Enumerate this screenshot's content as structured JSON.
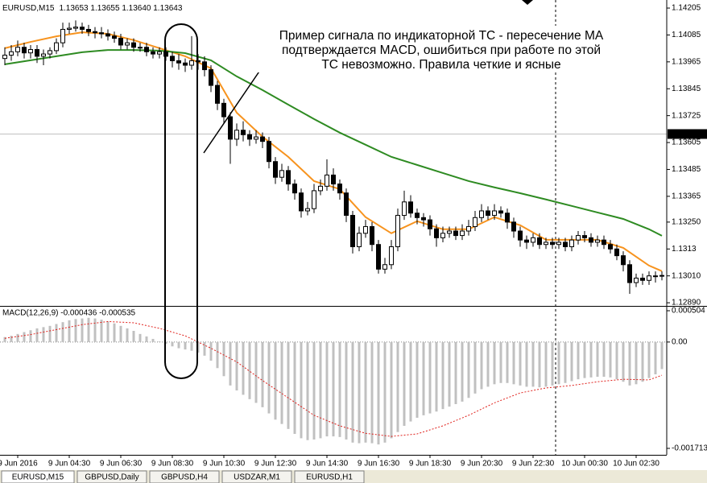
{
  "chart_data": [
    {
      "type": "candlestick",
      "title": "EURUSD,M15",
      "subtitle": "1.13653 1.13655 1.13640 1.13643",
      "annotation": [
        "Пример сигнала по индикаторной ТС - пересечение МА",
        "подтверждается MACD, ошибиться при работе по этой",
        "ТС невозможно. Правила четкие и ясные"
      ],
      "x": [
        1,
        2,
        3,
        4,
        5,
        6,
        7,
        8,
        9,
        10,
        11,
        12,
        13,
        14,
        15,
        16,
        17,
        18,
        19,
        20,
        21,
        22,
        23,
        24,
        25,
        26,
        27,
        28,
        29,
        30,
        31,
        32,
        33,
        34,
        35,
        36,
        37,
        38,
        39,
        40,
        41,
        42,
        43,
        44,
        45,
        46,
        47,
        48,
        49,
        50,
        51,
        52,
        53,
        54,
        55,
        56,
        57,
        58,
        59,
        60,
        61,
        62,
        63,
        64,
        65,
        66,
        67,
        68,
        69,
        70,
        71,
        72,
        73,
        74,
        75,
        76,
        77,
        78,
        79,
        80,
        81,
        82,
        83,
        84,
        85,
        86,
        87,
        88,
        89,
        90,
        91,
        92,
        93,
        94,
        95,
        96,
        97,
        98,
        99,
        100,
        101,
        102,
        103
      ],
      "open": [
        1.1398,
        1.13995,
        1.1401,
        1.1403,
        1.14005,
        1.1402,
        1.1399,
        1.14,
        1.14015,
        1.1405,
        1.1411,
        1.14115,
        1.1412,
        1.1411,
        1.141,
        1.14095,
        1.1409,
        1.1408,
        1.1407,
        1.1404,
        1.1405,
        1.1403,
        1.1403,
        1.1401,
        1.14,
        1.1401,
        1.1399,
        1.1397,
        1.1396,
        1.1395,
        1.1397,
        1.13965,
        1.1393,
        1.1386,
        1.1378,
        1.1372,
        1.1362,
        1.1366,
        1.1364,
        1.1362,
        1.1363,
        1.1361,
        1.1352,
        1.1345,
        1.1348,
        1.1342,
        1.1338,
        1.133,
        1.1331,
        1.1339,
        1.1341,
        1.1346,
        1.1342,
        1.1338,
        1.1328,
        1.1314,
        1.132,
        1.1323,
        1.1315,
        1.1304,
        1.1306,
        1.1314,
        1.1328,
        1.1334,
        1.1329,
        1.1327,
        1.1326,
        1.1322,
        1.1318,
        1.132,
        1.1321,
        1.1319,
        1.1321,
        1.1323,
        1.1327,
        1.133,
        1.1328,
        1.133,
        1.1329,
        1.1325,
        1.1321,
        1.1317,
        1.1316,
        1.1318,
        1.1315,
        1.1316,
        1.1315,
        1.1316,
        1.1314,
        1.1317,
        1.1319,
        1.1318,
        1.1316,
        1.1317,
        1.1315,
        1.1313,
        1.131,
        1.1306,
        1.1298,
        1.13,
        1.1299,
        1.1301,
        1.1301
      ],
      "high": [
        1.1403,
        1.1404,
        1.1406,
        1.1405,
        1.1404,
        1.1404,
        1.1402,
        1.1403,
        1.1407,
        1.1414,
        1.1414,
        1.1415,
        1.1414,
        1.1413,
        1.1412,
        1.1412,
        1.1411,
        1.141,
        1.1409,
        1.1407,
        1.1407,
        1.1405,
        1.1405,
        1.1403,
        1.1403,
        1.1403,
        1.1401,
        1.14,
        1.1398,
        1.1408,
        1.14,
        1.1399,
        1.1395,
        1.1388,
        1.138,
        1.1374,
        1.1369,
        1.137,
        1.1366,
        1.1366,
        1.1365,
        1.1363,
        1.1354,
        1.1351,
        1.135,
        1.1344,
        1.134,
        1.1334,
        1.1342,
        1.1344,
        1.1353,
        1.1349,
        1.1344,
        1.134,
        1.133,
        1.1323,
        1.1326,
        1.1325,
        1.1317,
        1.1309,
        1.1317,
        1.1331,
        1.1339,
        1.1337,
        1.1331,
        1.1329,
        1.1328,
        1.1324,
        1.1323,
        1.1323,
        1.1323,
        1.1324,
        1.1326,
        1.133,
        1.1333,
        1.1332,
        1.1333,
        1.1332,
        1.1331,
        1.1327,
        1.1323,
        1.1319,
        1.132,
        1.132,
        1.1318,
        1.1318,
        1.1318,
        1.1318,
        1.1319,
        1.1321,
        1.1321,
        1.132,
        1.1319,
        1.1319,
        1.1317,
        1.1315,
        1.1312,
        1.1308,
        1.1302,
        1.1302,
        1.1303,
        1.1303,
        1.1303
      ],
      "low": [
        1.1395,
        1.1397,
        1.1399,
        1.1398,
        1.1398,
        1.1396,
        1.1395,
        1.1398,
        1.14,
        1.1403,
        1.1409,
        1.141,
        1.1409,
        1.1408,
        1.1407,
        1.1407,
        1.1406,
        1.1405,
        1.1402,
        1.1402,
        1.1401,
        1.1401,
        1.1399,
        1.1398,
        1.1398,
        1.1397,
        1.1394,
        1.1393,
        1.1392,
        1.1393,
        1.1393,
        1.139,
        1.1383,
        1.1375,
        1.1369,
        1.1351,
        1.1359,
        1.1361,
        1.1359,
        1.136,
        1.1358,
        1.1349,
        1.1342,
        1.1343,
        1.1339,
        1.1335,
        1.1327,
        1.1328,
        1.1329,
        1.1337,
        1.1339,
        1.1339,
        1.1335,
        1.1325,
        1.1311,
        1.1312,
        1.1318,
        1.1312,
        1.1302,
        1.1302,
        1.1304,
        1.1312,
        1.1326,
        1.1327,
        1.1324,
        1.1323,
        1.1319,
        1.1314,
        1.1316,
        1.1318,
        1.1317,
        1.1317,
        1.1319,
        1.1321,
        1.1325,
        1.1326,
        1.1326,
        1.1327,
        1.1322,
        1.1318,
        1.1314,
        1.1313,
        1.1314,
        1.1313,
        1.1313,
        1.1313,
        1.1313,
        1.1312,
        1.1312,
        1.1315,
        1.1316,
        1.1314,
        1.1314,
        1.1313,
        1.1311,
        1.1308,
        1.1303,
        1.1293,
        1.1296,
        1.1297,
        1.1297,
        1.1298,
        1.1299
      ],
      "close": [
        1.13995,
        1.1401,
        1.1403,
        1.14005,
        1.1402,
        1.1399,
        1.14,
        1.14015,
        1.1405,
        1.1411,
        1.14115,
        1.1412,
        1.1411,
        1.141,
        1.14095,
        1.1409,
        1.1408,
        1.1407,
        1.1404,
        1.1405,
        1.1403,
        1.1403,
        1.1401,
        1.14,
        1.1401,
        1.1399,
        1.1397,
        1.1396,
        1.1395,
        1.1397,
        1.13965,
        1.1393,
        1.1386,
        1.1378,
        1.1372,
        1.1362,
        1.1366,
        1.1364,
        1.1362,
        1.1363,
        1.1361,
        1.1352,
        1.1345,
        1.1348,
        1.1342,
        1.1338,
        1.133,
        1.1331,
        1.1339,
        1.1341,
        1.1346,
        1.1342,
        1.1338,
        1.1328,
        1.1314,
        1.132,
        1.1323,
        1.1315,
        1.1304,
        1.1306,
        1.1314,
        1.1328,
        1.1334,
        1.1329,
        1.1327,
        1.1326,
        1.1322,
        1.1318,
        1.132,
        1.1321,
        1.1319,
        1.1321,
        1.1323,
        1.1327,
        1.133,
        1.1328,
        1.133,
        1.1329,
        1.1325,
        1.1321,
        1.1317,
        1.1316,
        1.1318,
        1.1315,
        1.1316,
        1.1315,
        1.1316,
        1.1314,
        1.1317,
        1.1319,
        1.1318,
        1.1316,
        1.1317,
        1.1315,
        1.1313,
        1.131,
        1.1306,
        1.1298,
        1.13,
        1.1299,
        1.1301,
        1.1301,
        1.13012
      ],
      "bull_color": "#ffffff",
      "bear_color": "#000000",
      "series": [
        {
          "color": "#f7931e",
          "x": [
            1,
            5,
            9,
            13,
            17,
            21,
            25,
            29,
            33,
            37,
            41,
            45,
            49,
            53,
            57,
            61,
            65,
            69,
            73,
            77,
            81,
            85,
            89,
            93,
            97,
            101,
            103
          ],
          "values": [
            1.14026,
            1.14054,
            1.14079,
            1.14097,
            1.1409,
            1.14062,
            1.14026,
            1.1399,
            1.13936,
            1.13738,
            1.13631,
            1.13541,
            1.13433,
            1.13397,
            1.13272,
            1.132,
            1.13254,
            1.13218,
            1.13218,
            1.13272,
            1.13236,
            1.13171,
            1.13171,
            1.13171,
            1.13135,
            1.13056,
            1.13031
          ]
        },
        {
          "color": "#2e8b22",
          "x": [
            1,
            5,
            9,
            13,
            17,
            21,
            25,
            29,
            33,
            37,
            41,
            45,
            49,
            53,
            57,
            61,
            65,
            69,
            73,
            77,
            81,
            85,
            89,
            93,
            97,
            101,
            103
          ],
          "values": [
            1.13954,
            1.13972,
            1.1399,
            1.14008,
            1.14018,
            1.14018,
            1.14015,
            1.14004,
            1.13972,
            1.139,
            1.13839,
            1.13774,
            1.1371,
            1.13649,
            1.13595,
            1.13541,
            1.13505,
            1.13469,
            1.13433,
            1.13405,
            1.13379,
            1.13351,
            1.13322,
            1.13293,
            1.13264,
            1.13218,
            1.13189
          ]
        }
      ],
      "price_line": 1.13643,
      "xlim": [
        0.25,
        103.75
      ],
      "xticks": [
        {
          "value": 3,
          "label": "9 Jun 2016"
        },
        {
          "value": 11,
          "label": "9 Jun 04:30"
        },
        {
          "value": 19,
          "label": "9 Jun 06:30"
        },
        {
          "value": 27,
          "label": "9 Jun 08:30"
        },
        {
          "value": 35,
          "label": "9 Jun 10:30"
        },
        {
          "value": 43,
          "label": "9 Jun 12:30"
        },
        {
          "value": 51,
          "label": "9 Jun 14:30"
        },
        {
          "value": 59,
          "label": "9 Jun 16:30"
        },
        {
          "value": 67,
          "label": "9 Jun 18:30"
        },
        {
          "value": 75,
          "label": "9 Jun 20:30"
        },
        {
          "value": 83,
          "label": "9 Jun 22:30"
        },
        {
          "value": 91,
          "label": "10 Jun 00:30"
        },
        {
          "value": 99,
          "label": "10 Jun 02:30"
        }
      ],
      "ylim": [
        1.12876,
        1.14241
      ],
      "yticks": [
        1.14205,
        1.14085,
        1.13965,
        1.13845,
        1.13725,
        1.13605,
        1.13485,
        1.13365,
        {
          "value": 1.1325,
          "label": "1.13250"
        },
        1.1313,
        {
          "value": 1.1301,
          "label": "1.13010"
        },
        {
          "value": 1.1289,
          "label": "1.12890"
        }
      ]
    },
    {
      "type": "macd",
      "title": "MACD(12,26,9) -0.000436 -0.000535",
      "x": [
        1,
        2,
        3,
        4,
        5,
        6,
        7,
        8,
        9,
        10,
        11,
        12,
        13,
        14,
        15,
        16,
        17,
        18,
        19,
        20,
        21,
        22,
        23,
        24,
        25,
        26,
        27,
        28,
        29,
        30,
        31,
        32,
        33,
        34,
        35,
        36,
        37,
        38,
        39,
        40,
        41,
        42,
        43,
        44,
        45,
        46,
        47,
        48,
        49,
        50,
        51,
        52,
        53,
        54,
        55,
        56,
        57,
        58,
        59,
        60,
        61,
        62,
        63,
        64,
        65,
        66,
        67,
        68,
        69,
        70,
        71,
        72,
        73,
        74,
        75,
        76,
        77,
        78,
        79,
        80,
        81,
        82,
        83,
        84,
        85,
        86,
        87,
        88,
        89,
        90,
        91,
        92,
        93,
        94,
        95,
        96,
        97,
        98,
        99,
        100,
        101,
        102,
        103
      ],
      "values": [
        8e-05,
        0.0001,
        0.00013,
        0.00016,
        0.00019,
        0.00022,
        0.00024,
        0.00026,
        0.00029,
        0.00032,
        0.00035,
        0.00037,
        0.00038,
        0.00039,
        0.00038,
        0.00036,
        0.00033,
        0.0003,
        0.00026,
        0.00022,
        0.00018,
        0.00013,
        9e-05,
        5e-05,
        1e-05,
        -3e-05,
        -7e-05,
        -0.0001,
        -0.00012,
        -0.00014,
        -0.00017,
        -0.00022,
        -0.0003,
        -0.00042,
        -0.00055,
        -0.0007,
        -0.00078,
        -0.00085,
        -0.00092,
        -0.00098,
        -0.00105,
        -0.00115,
        -0.00125,
        -0.00132,
        -0.0014,
        -0.00148,
        -0.00155,
        -0.00158,
        -0.00157,
        -0.00155,
        -0.00152,
        -0.00152,
        -0.00153,
        -0.00157,
        -0.00162,
        -0.00163,
        -0.00162,
        -0.00163,
        -0.00165,
        -0.00162,
        -0.00155,
        -0.00145,
        -0.00135,
        -0.00128,
        -0.00122,
        -0.00118,
        -0.00115,
        -0.00112,
        -0.00108,
        -0.00104,
        -0.001,
        -0.00096,
        -0.0009,
        -0.00083,
        -0.00076,
        -0.00072,
        -0.00068,
        -0.00066,
        -0.00066,
        -0.00068,
        -0.0007,
        -0.00072,
        -0.00072,
        -0.00073,
        -0.00072,
        -0.0007,
        -0.00068,
        -0.00066,
        -0.00063,
        -0.0006,
        -0.00058,
        -0.00057,
        -0.00056,
        -0.00056,
        -0.00057,
        -0.0006,
        -0.00064,
        -0.0007,
        -0.00068,
        -0.00064,
        -0.00058,
        -0.00052,
        -0.000436
      ],
      "color": "#c0c0c0",
      "series": [
        {
          "color": "#e0201b",
          "x": [
            1,
            5,
            9,
            13,
            17,
            21,
            25,
            29,
            33,
            37,
            41,
            45,
            49,
            53,
            57,
            61,
            65,
            69,
            73,
            77,
            81,
            85,
            89,
            93,
            97,
            101,
            103
          ],
          "values": [
            6e-05,
            0.00012,
            0.0002,
            0.00028,
            0.00033,
            0.00031,
            0.00022,
            0.0001,
            -0.0001,
            -0.00032,
            -0.00062,
            -0.0009,
            -0.00118,
            -0.00135,
            -0.00147,
            -0.00152,
            -0.00148,
            -0.00135,
            -0.00118,
            -0.00098,
            -0.00082,
            -0.00074,
            -0.0007,
            -0.00064,
            -0.0006,
            -0.00061,
            -0.000535
          ]
        }
      ],
      "xlim": [
        0.25,
        103.75
      ],
      "ylim": [
        -0.001817,
        0.000569
      ],
      "yticks": [
        0.000504,
        {
          "value": 0,
          "label": "0.00"
        },
        -0.001713
      ]
    }
  ],
  "tabs": [
    "EURUSD,M15",
    "GBPUSD,Daily",
    "GBPUSD,H4",
    "USDZAR,M1",
    "EURUSD,H1"
  ]
}
